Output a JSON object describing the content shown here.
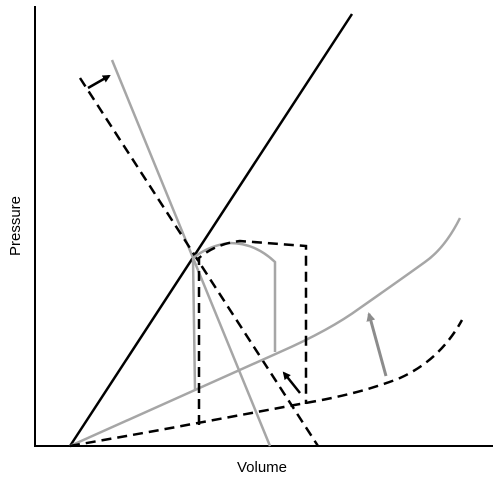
{
  "axes": {
    "x_label": "Volume",
    "y_label": "Pressure"
  },
  "colors": {
    "black": "#000000",
    "gray": "#a6a6a6",
    "arrow_gray": "#8c8c8c"
  }
}
